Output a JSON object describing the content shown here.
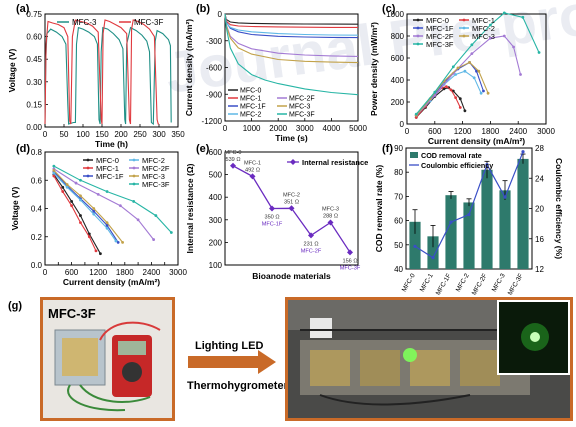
{
  "figure": {
    "watermark": "Journal Pre-proof"
  },
  "chart_data": [
    {
      "panel": "(a)",
      "type": "line",
      "xlabel": "Time (h)",
      "ylabel": "Voltage (V)",
      "xlim": [
        0,
        350
      ],
      "ylim": [
        0,
        0.75
      ],
      "xticks": [
        0,
        50,
        100,
        150,
        200,
        250,
        300,
        350
      ],
      "yticks": [
        0.0,
        0.15,
        0.3,
        0.45,
        0.6,
        0.75
      ],
      "ytick_labels": [
        "0.00",
        "0.15",
        "0.30",
        "0.45",
        "0.60",
        "0.75"
      ],
      "legend_position": "top",
      "series": [
        {
          "name": "MFC-3",
          "color": "#1f8f86",
          "x": [
            0,
            2,
            5,
            15,
            30,
            45,
            55,
            60,
            62,
            75,
            80,
            83,
            88,
            100,
            115,
            130,
            138,
            142,
            145,
            148,
            152,
            165,
            180,
            195,
            205,
            210,
            212,
            215,
            225,
            240,
            255,
            268,
            275,
            280,
            285,
            290,
            295,
            310,
            325,
            330,
            332
          ],
          "y": [
            0.02,
            0.45,
            0.62,
            0.65,
            0.63,
            0.6,
            0.55,
            0.15,
            0.02,
            0.03,
            0.03,
            0.55,
            0.66,
            0.65,
            0.63,
            0.6,
            0.55,
            0.05,
            0.02,
            0.5,
            0.66,
            0.65,
            0.62,
            0.58,
            0.52,
            0.05,
            0.02,
            0.55,
            0.66,
            0.64,
            0.61,
            0.57,
            0.5,
            0.03,
            0.02,
            0.57,
            0.64,
            0.62,
            0.58,
            0.54,
            0.03
          ]
        },
        {
          "name": "MFC-3F",
          "color": "#e0393e",
          "x": [
            0,
            3,
            8,
            20,
            35,
            50,
            60,
            65,
            68,
            72,
            80,
            95,
            110,
            125,
            140,
            148,
            150,
            153,
            158,
            170,
            185,
            200,
            215,
            222,
            225,
            228,
            232,
            245,
            260,
            275,
            288,
            295,
            298,
            300
          ],
          "y": [
            0.02,
            0.55,
            0.7,
            0.69,
            0.68,
            0.66,
            0.6,
            0.04,
            0.02,
            0.6,
            0.71,
            0.7,
            0.69,
            0.67,
            0.63,
            0.05,
            0.02,
            0.62,
            0.71,
            0.7,
            0.68,
            0.66,
            0.62,
            0.05,
            0.02,
            0.65,
            0.71,
            0.7,
            0.68,
            0.65,
            0.6,
            0.05,
            0.02,
            0.02
          ]
        }
      ]
    },
    {
      "panel": "(b)",
      "type": "line",
      "xlabel": "Time (s)",
      "ylabel": "Current density (mA/m²)",
      "xlim": [
        0,
        5000
      ],
      "ylim": [
        -1200,
        0
      ],
      "xticks": [
        0,
        1000,
        2000,
        3000,
        4000,
        5000
      ],
      "yticks": [
        0,
        -300,
        -600,
        -900,
        -1200
      ],
      "series": [
        {
          "name": "MFC-0",
          "color": "#222222",
          "x": [
            0,
            50,
            200,
            500,
            1000,
            2000,
            3000,
            4000,
            5000
          ],
          "y": [
            0,
            -60,
            -90,
            -100,
            -105,
            -110,
            -112,
            -113,
            -114
          ]
        },
        {
          "name": "MFC-1",
          "color": "#e0393e",
          "x": [
            0,
            50,
            200,
            500,
            1000,
            2000,
            3000,
            4000,
            5000
          ],
          "y": [
            0,
            -80,
            -120,
            -135,
            -140,
            -145,
            -148,
            -150,
            -150
          ]
        },
        {
          "name": "MFC-1F",
          "color": "#3a4fc7",
          "x": [
            0,
            50,
            200,
            500,
            1000,
            2000,
            3000,
            4000,
            5000
          ],
          "y": [
            0,
            -90,
            -160,
            -200,
            -230,
            -250,
            -258,
            -262,
            -265
          ]
        },
        {
          "name": "MFC-2",
          "color": "#5fb8e6",
          "x": [
            0,
            50,
            200,
            500,
            1000,
            2000,
            3000,
            4000,
            5000
          ],
          "y": [
            0,
            -100,
            -150,
            -180,
            -200,
            -220,
            -230,
            -235,
            -238
          ]
        },
        {
          "name": "MFC-2F",
          "color": "#a37ad4",
          "x": [
            0,
            50,
            200,
            500,
            1000,
            2000,
            3000,
            4000,
            5000
          ],
          "y": [
            0,
            -120,
            -250,
            -330,
            -390,
            -440,
            -460,
            -470,
            -475
          ]
        },
        {
          "name": "MFC-3",
          "color": "#c2a24a",
          "x": [
            0,
            50,
            200,
            500,
            1000,
            2000,
            3000,
            4000,
            5000
          ],
          "y": [
            0,
            -130,
            -270,
            -380,
            -450,
            -510,
            -530,
            -540,
            -545
          ]
        },
        {
          "name": "MFC-3F",
          "color": "#27b5a5",
          "x": [
            0,
            50,
            200,
            500,
            1000,
            1500,
            2000,
            3000,
            4000,
            5000
          ],
          "y": [
            0,
            -150,
            -380,
            -560,
            -680,
            -740,
            -780,
            -840,
            -880,
            -905
          ]
        }
      ]
    },
    {
      "panel": "(c)",
      "type": "line",
      "xlabel": "Current density (mA/m²)",
      "ylabel": "Power density (mW/m²)",
      "xlim": [
        0,
        3000
      ],
      "ylim": [
        0,
        1000
      ],
      "xticks": [
        0,
        600,
        1200,
        1800,
        2400,
        3000
      ],
      "yticks": [
        0,
        200,
        400,
        600,
        800,
        1000
      ],
      "series": [
        {
          "name": "MFC-0",
          "color": "#222222",
          "x": [
            200,
            400,
            600,
            800,
            900,
            1000,
            1150,
            1250
          ],
          "y": [
            60,
            150,
            250,
            320,
            330,
            300,
            230,
            120
          ]
        },
        {
          "name": "MFC-1",
          "color": "#e0393e",
          "x": [
            200,
            400,
            600,
            750,
            850,
            950,
            1050,
            1150
          ],
          "y": [
            60,
            160,
            260,
            330,
            340,
            310,
            240,
            150
          ]
        },
        {
          "name": "MFC-1F",
          "color": "#3a4fc7",
          "x": [
            200,
            500,
            800,
            1100,
            1350,
            1500,
            1650
          ],
          "y": [
            80,
            220,
            380,
            500,
            560,
            480,
            300
          ]
        },
        {
          "name": "MFC-2",
          "color": "#5fb8e6",
          "x": [
            200,
            500,
            800,
            1050,
            1250,
            1450,
            1600
          ],
          "y": [
            80,
            210,
            360,
            450,
            480,
            420,
            280
          ]
        },
        {
          "name": "MFC-2F",
          "color": "#a37ad4",
          "x": [
            200,
            600,
            1000,
            1400,
            1800,
            2100,
            2300,
            2450
          ],
          "y": [
            80,
            260,
            460,
            640,
            780,
            800,
            700,
            450
          ]
        },
        {
          "name": "MFC-3",
          "color": "#c2a24a",
          "x": [
            200,
            500,
            800,
            1100,
            1350,
            1550,
            1750
          ],
          "y": [
            80,
            230,
            390,
            510,
            560,
            480,
            280
          ]
        },
        {
          "name": "MFC-3F",
          "color": "#27b5a5",
          "x": [
            200,
            600,
            1000,
            1400,
            1800,
            2100,
            2500,
            2850
          ],
          "y": [
            90,
            290,
            520,
            720,
            900,
            1010,
            970,
            650
          ]
        }
      ]
    },
    {
      "panel": "(d)",
      "type": "line",
      "xlabel": "Current density (mA/m²)",
      "ylabel": "Voltage (V)",
      "xlim": [
        0,
        3000
      ],
      "ylim": [
        0,
        0.8
      ],
      "xticks": [
        0,
        300,
        600,
        900,
        1200,
        1500,
        1800,
        2100,
        2400,
        2700,
        3000
      ],
      "xtick_labels": [
        "0",
        "",
        "600",
        "",
        "1200",
        "",
        "1800",
        "",
        "2400",
        "",
        "3000"
      ],
      "yticks": [
        0.0,
        0.2,
        0.4,
        0.6,
        0.8
      ],
      "ytick_labels": [
        "0.0",
        "0.2",
        "0.4",
        "0.6",
        "0.8"
      ],
      "series": [
        {
          "name": "MFC-0",
          "color": "#222222",
          "x": [
            200,
            400,
            600,
            800,
            1000,
            1250
          ],
          "y": [
            0.64,
            0.55,
            0.45,
            0.35,
            0.22,
            0.08
          ]
        },
        {
          "name": "MFC-1",
          "color": "#e0393e",
          "x": [
            200,
            400,
            600,
            800,
            1000,
            1150
          ],
          "y": [
            0.63,
            0.52,
            0.42,
            0.3,
            0.2,
            0.1
          ]
        },
        {
          "name": "MFC-1F",
          "color": "#3a4fc7",
          "x": [
            200,
            500,
            800,
            1100,
            1400,
            1650
          ],
          "y": [
            0.66,
            0.56,
            0.47,
            0.38,
            0.28,
            0.16
          ]
        },
        {
          "name": "MFC-2",
          "color": "#5fb8e6",
          "x": [
            200,
            500,
            800,
            1100,
            1400,
            1600
          ],
          "y": [
            0.65,
            0.55,
            0.46,
            0.36,
            0.26,
            0.17
          ]
        },
        {
          "name": "MFC-2F",
          "color": "#a37ad4",
          "x": [
            200,
            700,
            1200,
            1700,
            2100,
            2450
          ],
          "y": [
            0.68,
            0.58,
            0.5,
            0.42,
            0.32,
            0.18
          ]
        },
        {
          "name": "MFC-3",
          "color": "#c2a24a",
          "x": [
            200,
            500,
            800,
            1100,
            1400,
            1750
          ],
          "y": [
            0.67,
            0.57,
            0.49,
            0.4,
            0.3,
            0.16
          ]
        },
        {
          "name": "MFC-3F",
          "color": "#27b5a5",
          "x": [
            200,
            800,
            1400,
            2000,
            2500,
            2850
          ],
          "y": [
            0.7,
            0.6,
            0.52,
            0.45,
            0.35,
            0.23
          ]
        }
      ]
    },
    {
      "panel": "(e)",
      "type": "line",
      "xlabel": "Bioanode materials",
      "ylabel": "Internal resistance (Ω)",
      "ylim": [
        100,
        600
      ],
      "yticks": [
        100,
        200,
        300,
        400,
        500,
        600
      ],
      "legend": "Internal resistance",
      "categories": [
        "MFC-0",
        "MFC-1",
        "MFC-1F",
        "MFC-2",
        "MFC-2F",
        "MFC-3",
        "MFC-3F"
      ],
      "values": [
        539,
        492,
        350,
        351,
        231,
        288,
        156
      ],
      "point_labels": [
        "MFC-0\n539 Ω",
        "MFC-1\n492 Ω",
        "350 Ω\nMFC-1F",
        "MFC-2\n351 Ω",
        "231 Ω\nMFC-2F",
        "MFC-3\n288 Ω",
        "156 Ω\nMFC-3F"
      ]
    },
    {
      "panel": "(f)",
      "type": "bar",
      "categories": [
        "MFC-0",
        "MFC-1",
        "MFC-1F",
        "MFC-2",
        "MFC-2F",
        "MFC-3",
        "MFC-3F"
      ],
      "ylabel": "COD removal rate (%)",
      "y2label": "Coulombic efficiency (%)",
      "ylim": [
        40,
        90
      ],
      "yticks": [
        40,
        50,
        60,
        70,
        80,
        90
      ],
      "y2lim": [
        12,
        28
      ],
      "y2ticks": [
        12,
        16,
        20,
        24,
        28
      ],
      "series": [
        {
          "name": "COD removal rate",
          "color": "#2e7a6c",
          "values": [
            59.5,
            53.5,
            70.5,
            67.5,
            81.0,
            72.5,
            85.5
          ],
          "errors": [
            5,
            4.5,
            1.5,
            1.5,
            3.5,
            4,
            2
          ]
        },
        {
          "name": "Coulombic efficiency",
          "color": "#3a4fc7",
          "values": [
            15.0,
            13.5,
            18.2,
            19.2,
            25.8,
            21.5,
            27.5
          ],
          "errors": [
            1,
            1,
            1,
            1,
            1,
            1,
            1
          ]
        }
      ]
    }
  ],
  "panel_g": {
    "label": "(g)",
    "photo_label": "MFC-3F",
    "arrow_line1": "Lighting LED",
    "arrow_line2": "Thermohygrometer"
  }
}
